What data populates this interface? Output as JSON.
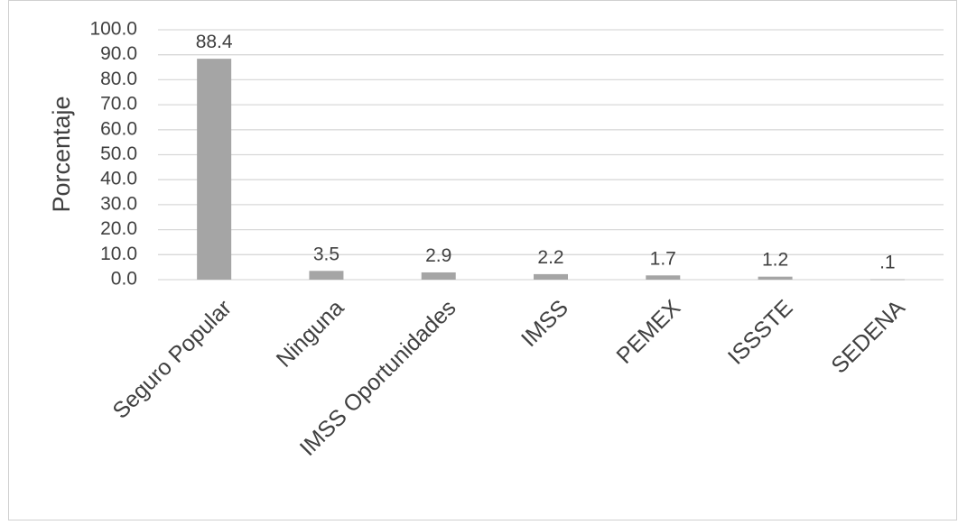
{
  "chart_data": {
    "type": "bar",
    "title": "",
    "xlabel": "",
    "ylabel": "Porcentaje",
    "ylim": [
      0,
      100
    ],
    "ytick_labels": [
      "0.0",
      "10.0",
      "20.0",
      "30.0",
      "40.0",
      "50.0",
      "60.0",
      "70.0",
      "80.0",
      "90.0",
      "100.0"
    ],
    "grid": true,
    "legend": "none",
    "categories": [
      "Seguro Popular",
      "Ninguna",
      "IMSS Oportunidades",
      "IMSS",
      "PEMEX",
      "ISSSTE",
      "SEDENA"
    ],
    "values": [
      88.4,
      3.5,
      2.9,
      2.2,
      1.7,
      1.2,
      0.1
    ],
    "data_labels": [
      "88.4",
      "3.5",
      "2.9",
      "2.2",
      "1.7",
      "1.2",
      ".1"
    ],
    "colors": {
      "bar": "#A5A5A5",
      "grid": "#D9D9D9",
      "text": "#404040",
      "frame": "#D0D0D0"
    }
  }
}
